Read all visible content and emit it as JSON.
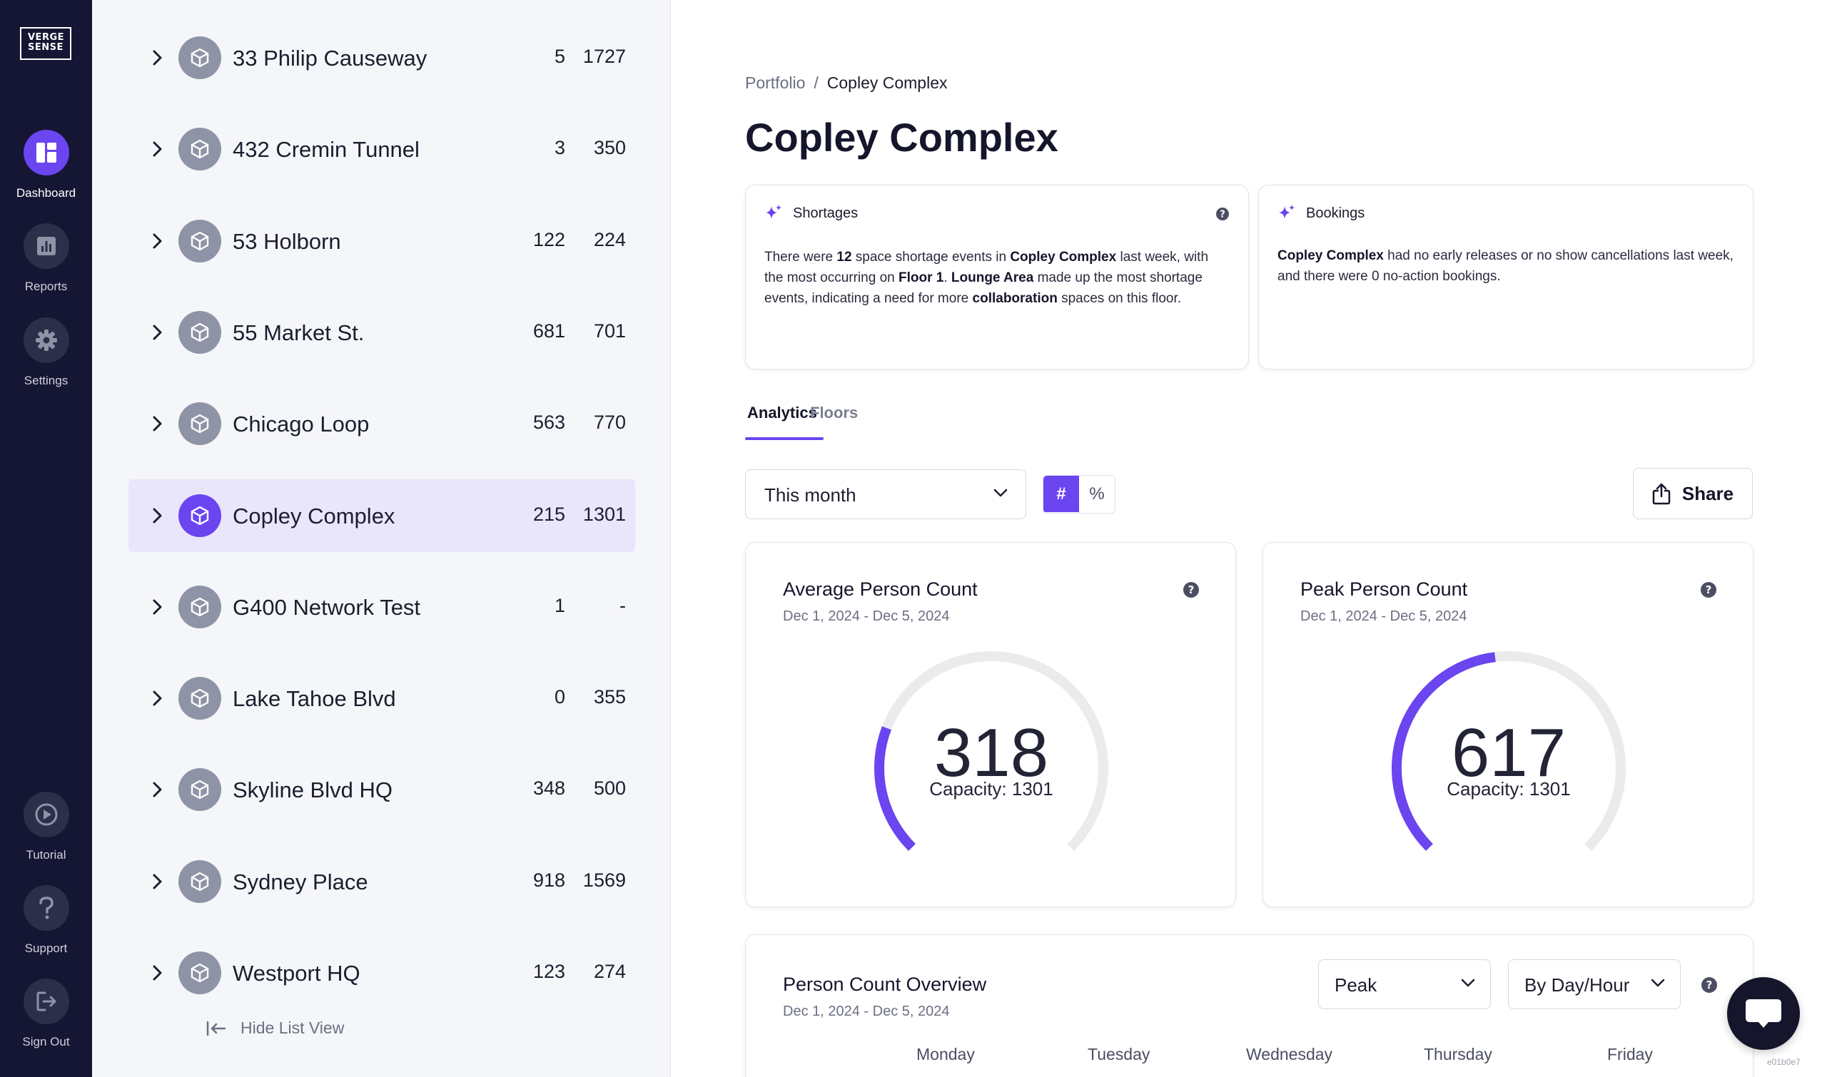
{
  "logo": {
    "line1": "VERGE",
    "line2": "SENSE"
  },
  "nav": {
    "dashboard": "Dashboard",
    "reports": "Reports",
    "settings": "Settings",
    "tutorial": "Tutorial",
    "support": "Support",
    "sign_out": "Sign Out"
  },
  "buildings": [
    {
      "name": "33 Philip Causeway",
      "v1": "5",
      "v2": "1727"
    },
    {
      "name": "432 Cremin Tunnel",
      "v1": "3",
      "v2": "350"
    },
    {
      "name": "53 Holborn",
      "v1": "122",
      "v2": "224"
    },
    {
      "name": "55 Market St.",
      "v1": "681",
      "v2": "701"
    },
    {
      "name": "Chicago Loop",
      "v1": "563",
      "v2": "770"
    },
    {
      "name": "Copley Complex",
      "v1": "215",
      "v2": "1301"
    },
    {
      "name": "G400 Network Test",
      "v1": "1",
      "v2": "-"
    },
    {
      "name": "Lake Tahoe Blvd",
      "v1": "0",
      "v2": "355"
    },
    {
      "name": "Skyline Blvd HQ",
      "v1": "348",
      "v2": "500"
    },
    {
      "name": "Sydney Place",
      "v1": "918",
      "v2": "1569"
    },
    {
      "name": "Westport HQ",
      "v1": "123",
      "v2": "274"
    }
  ],
  "hide_list": "Hide List View",
  "breadcrumb": {
    "root": "Portfolio",
    "sep": "/",
    "current": "Copley Complex"
  },
  "page_title": "Copley Complex",
  "shortages": {
    "title": "Shortages",
    "t1": "There were ",
    "count": "12",
    "t2": " space shortage events in ",
    "building": "Copley Complex",
    "t3": " last week, with the most occurring on ",
    "floor": "Floor 1",
    "t4": ". ",
    "area": "Lounge Area",
    "t5": " made up the most shortage events, indicating a need for more ",
    "kind": "collaboration",
    "t6": " spaces on this floor."
  },
  "bookings": {
    "title": "Bookings",
    "building": "Copley Complex",
    "text": " had no early releases or no show cancellations last week, and there were 0 no-action bookings."
  },
  "tabs": {
    "analytics": "Analytics",
    "floors": "Floors"
  },
  "date_range": "This month",
  "toggle": {
    "count": "#",
    "percent": "%"
  },
  "share": "Share",
  "avg": {
    "title": "Average Person Count",
    "dates": "Dec 1, 2024 - Dec 5, 2024",
    "value": "318",
    "capacity_label": "Capacity: 1301",
    "fill": 0.2444
  },
  "peak": {
    "title": "Peak Person Count",
    "dates": "Dec 1, 2024 - Dec 5, 2024",
    "value": "617",
    "capacity_label": "Capacity: 1301",
    "fill": 0.4742
  },
  "overview": {
    "title": "Person Count Overview",
    "dates": "Dec 1, 2024 - Dec 5, 2024",
    "metric": "Peak",
    "grouping": "By Day/Hour",
    "days": [
      "Monday",
      "Tuesday",
      "Wednesday",
      "Thursday",
      "Friday"
    ]
  },
  "build_id": "e01b0e7",
  "colors": {
    "accent": "#6a45f0",
    "rail": "#141633",
    "panel": "#f5f6f9",
    "selected_row": "#e9e5fb"
  }
}
